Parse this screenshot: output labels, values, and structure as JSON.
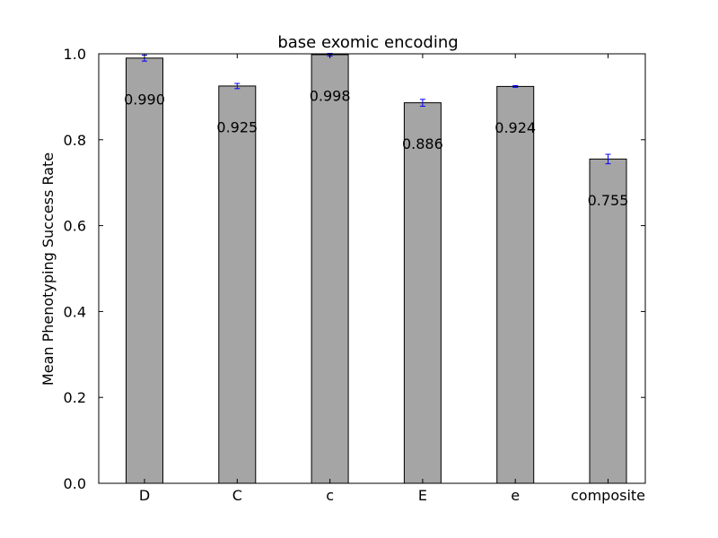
{
  "chart_data": {
    "type": "bar",
    "title": "base exomic encoding",
    "xlabel": "",
    "ylabel": "Mean Phenotyping Success Rate",
    "categories": [
      "D",
      "C",
      "c",
      "E",
      "e",
      "composite"
    ],
    "values": [
      0.99,
      0.925,
      0.998,
      0.886,
      0.924,
      0.755
    ],
    "value_labels": [
      "0.990",
      "0.925",
      "0.998",
      "0.886",
      "0.924",
      "0.755"
    ],
    "errors": [
      0.007,
      0.006,
      0.003,
      0.008,
      0.002,
      0.011
    ],
    "ylim": [
      0,
      1.0
    ],
    "yticks": [
      0.0,
      0.2,
      0.4,
      0.6,
      0.8,
      1.0
    ],
    "ytick_labels": [
      "0.0",
      "0.2",
      "0.4",
      "0.6",
      "0.8",
      "1.0"
    ],
    "grid": false,
    "colors": {
      "bar": "#a5a5a5",
      "bar_edge": "#000000",
      "error_bar": "#0000ff"
    }
  }
}
